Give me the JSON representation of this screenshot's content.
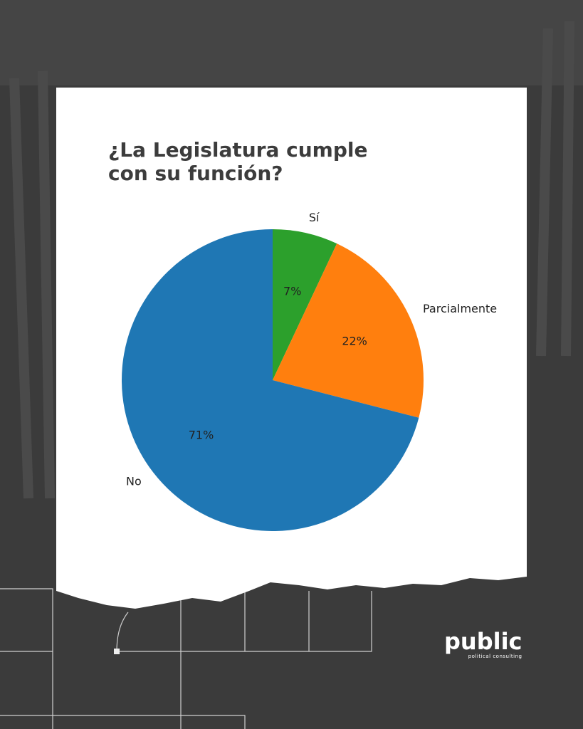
{
  "chart_data": {
    "type": "pie",
    "title": "¿La Legislatura cumple con su función?",
    "categories": [
      "Sí",
      "Parcialmente",
      "No"
    ],
    "values": [
      7,
      22,
      71
    ],
    "value_labels": [
      "7%",
      "22%",
      "71%"
    ],
    "colors": [
      "#2ca02c",
      "#ff7f0e",
      "#1f77b4"
    ],
    "start_angle": 90,
    "clockwise": true
  },
  "branding": {
    "name": "public",
    "tagline": "political consulting"
  }
}
